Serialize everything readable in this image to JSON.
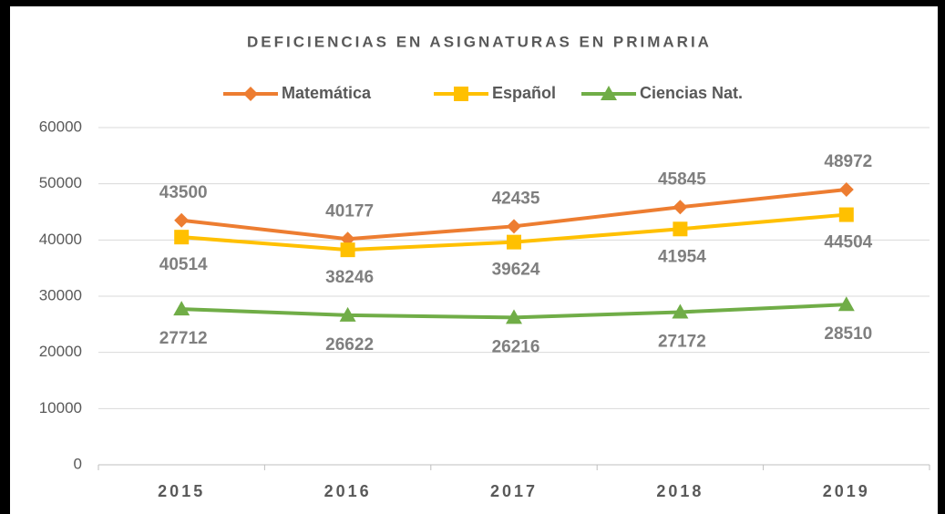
{
  "chart_data": {
    "type": "line",
    "title": "DEFICIENCIAS EN ASIGNATURAS EN PRIMARIA",
    "categories": [
      "2015",
      "2016",
      "2017",
      "2018",
      "2019"
    ],
    "series": [
      {
        "name": "Matemática",
        "color": "#ed7d31",
        "marker": "diamond",
        "values": [
          43500,
          40177,
          42435,
          45845,
          48972
        ]
      },
      {
        "name": "Español",
        "color": "#ffc000",
        "marker": "square",
        "values": [
          40514,
          38246,
          39624,
          41954,
          44504
        ]
      },
      {
        "name": "Ciencias Nat.",
        "color": "#70ad47",
        "marker": "triangle",
        "values": [
          27712,
          26622,
          26216,
          27172,
          28510
        ]
      }
    ],
    "ylim": [
      0,
      60000
    ],
    "yticks": [
      0,
      10000,
      20000,
      30000,
      40000,
      50000,
      60000
    ],
    "grid": true,
    "legend": "top"
  }
}
